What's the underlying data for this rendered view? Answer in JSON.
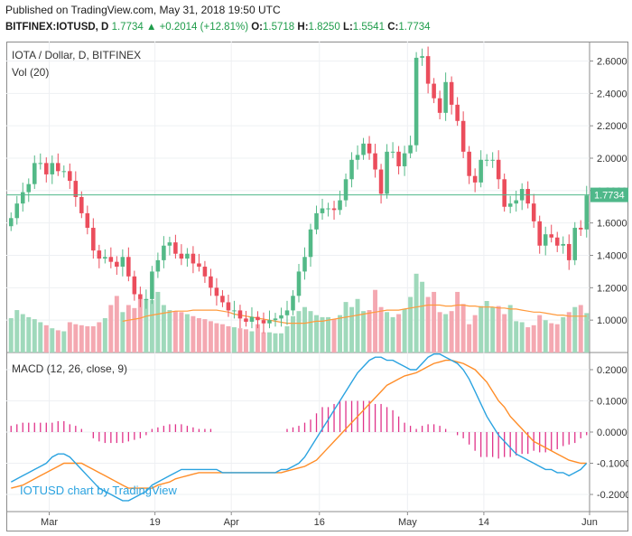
{
  "header": {
    "published": "Published on TradingView.com, May 31, 2018 19:50 UTC",
    "symbol": "BITFINEX:IOTUSD, D",
    "last": "1.7734",
    "change": "+0.2014 (+12.81%)",
    "o_label": "O:",
    "o_value": "1.5718",
    "h_label": "H:",
    "h_value": "1.8250",
    "l_label": "L:",
    "l_value": "1.5541",
    "c_label": "C:",
    "c_value": "1.7734"
  },
  "price_pane": {
    "title": "IOTA / Dollar, D, BITFINEX",
    "vol_label": "Vol (20)",
    "last_price_tag": "1.7734",
    "y_ticks": [
      "2.6000",
      "2.4000",
      "2.2000",
      "2.0000",
      "1.8000",
      "1.6000",
      "1.4000",
      "1.2000",
      "1.0000"
    ]
  },
  "macd_pane": {
    "title": "MACD (12, 26, close, 9)",
    "y_ticks": [
      "0.2000",
      "0.1000",
      "0.0000",
      "-0.1000",
      "-0.2000"
    ],
    "watermark": "IOTUSD chart by TradingView"
  },
  "x_axis": {
    "ticks": [
      "Mar",
      "19",
      "Apr",
      "16",
      "May",
      "14",
      "Jun"
    ]
  },
  "colors": {
    "up": "#53b987",
    "down": "#eb4d5c",
    "up_vol": "#9fd9bb",
    "down_vol": "#f4a8b1",
    "vol_ma": "#ff9a3c",
    "macd": "#2ba3e0",
    "signal": "#ff8d28",
    "hist": "#e0338a",
    "last_line": "#4fb88a",
    "grid": "#eef0f3",
    "axis": "#8a8a8a"
  },
  "chart_data": [
    {
      "type": "candlestick",
      "title": "IOTA / Dollar, D, BITFINEX",
      "x_start": "2018-02-22",
      "x_ticks": [
        "Mar",
        "19",
        "Apr",
        "16",
        "May",
        "14",
        "Jun"
      ],
      "ylim": [
        0.8,
        2.72
      ],
      "series": [
        {
          "name": "close",
          "values": [
            1.63,
            1.72,
            1.79,
            1.84,
            1.97,
            1.97,
            1.9,
            1.97,
            1.92,
            1.92,
            1.86,
            1.76,
            1.66,
            1.57,
            1.43,
            1.38,
            1.39,
            1.36,
            1.33,
            1.39,
            1.27,
            1.16,
            1.13,
            1.13,
            1.3,
            1.37,
            1.46,
            1.48,
            1.41,
            1.38,
            1.41,
            1.35,
            1.33,
            1.27,
            1.2,
            1.15,
            1.11,
            1.06,
            1.06,
            1.01,
            0.99,
            1.02,
            1.0,
            0.98,
            1.0,
            1.01,
            1.03,
            1.06,
            1.15,
            1.3,
            1.39,
            1.56,
            1.66,
            1.69,
            1.69,
            1.68,
            1.74,
            1.87,
            1.99,
            2.02,
            2.09,
            2.03,
            1.93,
            1.78,
            2.04,
            2.04,
            1.95,
            2.03,
            2.08,
            2.62,
            2.63,
            2.46,
            2.37,
            2.28,
            2.47,
            2.33,
            2.23,
            2.04,
            1.89,
            1.85,
            1.99,
            1.99,
            1.99,
            1.87,
            1.7,
            1.72,
            1.74,
            1.81,
            1.72,
            1.61,
            1.46,
            1.53,
            1.51,
            1.46,
            1.47,
            1.37,
            1.57,
            1.56,
            1.77
          ]
        },
        {
          "name": "volume",
          "values": [
            34,
            42,
            38,
            35,
            33,
            30,
            27,
            24,
            22,
            21,
            30,
            28,
            27,
            26,
            26,
            30,
            34,
            47,
            56,
            40,
            47,
            44,
            53,
            53,
            52,
            60,
            47,
            42,
            41,
            40,
            38,
            36,
            34,
            33,
            31,
            29,
            28,
            26,
            25,
            24,
            23,
            21,
            28,
            20,
            20,
            19,
            19,
            26,
            36,
            41,
            45,
            41,
            37,
            35,
            35,
            33,
            37,
            50,
            45,
            53,
            41,
            42,
            62,
            45,
            40,
            35,
            38,
            43,
            55,
            78,
            70,
            55,
            60,
            40,
            38,
            41,
            60,
            48,
            28,
            37,
            46,
            51,
            45,
            46,
            38,
            47,
            31,
            30,
            25,
            27,
            37,
            32,
            29,
            28,
            35,
            40,
            45,
            47,
            39
          ]
        },
        {
          "name": "Vol MA (20)",
          "values": [
            null,
            null,
            null,
            null,
            null,
            null,
            null,
            null,
            null,
            null,
            null,
            null,
            null,
            null,
            null,
            null,
            null,
            null,
            null,
            31,
            32,
            33,
            34,
            36,
            37,
            38,
            39,
            40,
            41,
            41,
            41,
            42,
            42,
            42,
            42,
            42,
            41,
            40,
            38,
            37,
            36,
            35,
            34,
            33,
            32,
            31,
            30,
            29,
            29,
            29,
            29,
            30,
            31,
            31,
            32,
            33,
            34,
            35,
            36,
            37,
            38,
            39,
            40,
            41,
            42,
            42,
            42,
            43,
            44,
            45,
            46,
            47,
            47,
            47,
            46,
            46,
            47,
            47,
            46,
            46,
            45,
            45,
            45,
            44,
            44,
            43,
            43,
            42,
            41,
            40,
            40,
            39,
            38,
            37,
            37,
            36,
            36,
            36,
            36
          ]
        }
      ],
      "last_price": 1.7734
    },
    {
      "type": "line",
      "title": "MACD (12, 26, close, 9)",
      "ylim": [
        -0.255,
        0.255
      ],
      "series": [
        {
          "name": "MACD",
          "values": [
            -0.16,
            -0.15,
            -0.14,
            -0.13,
            -0.12,
            -0.11,
            -0.1,
            -0.08,
            -0.07,
            -0.07,
            -0.08,
            -0.1,
            -0.12,
            -0.14,
            -0.16,
            -0.18,
            -0.19,
            -0.2,
            -0.21,
            -0.22,
            -0.22,
            -0.21,
            -0.2,
            -0.19,
            -0.17,
            -0.16,
            -0.15,
            -0.14,
            -0.13,
            -0.12,
            -0.12,
            -0.12,
            -0.12,
            -0.12,
            -0.12,
            -0.12,
            -0.13,
            -0.13,
            -0.13,
            -0.13,
            -0.13,
            -0.13,
            -0.13,
            -0.13,
            -0.13,
            -0.13,
            -0.12,
            -0.12,
            -0.11,
            -0.1,
            -0.08,
            -0.05,
            -0.02,
            0.01,
            0.04,
            0.07,
            0.1,
            0.13,
            0.16,
            0.19,
            0.21,
            0.23,
            0.24,
            0.24,
            0.23,
            0.23,
            0.22,
            0.21,
            0.2,
            0.2,
            0.22,
            0.24,
            0.25,
            0.25,
            0.24,
            0.23,
            0.22,
            0.2,
            0.17,
            0.13,
            0.09,
            0.05,
            0.02,
            -0.01,
            -0.03,
            -0.05,
            -0.07,
            -0.08,
            -0.09,
            -0.1,
            -0.11,
            -0.12,
            -0.12,
            -0.13,
            -0.13,
            -0.14,
            -0.13,
            -0.12,
            -0.1
          ]
        },
        {
          "name": "Signal",
          "values": [
            -0.18,
            -0.175,
            -0.17,
            -0.16,
            -0.15,
            -0.14,
            -0.13,
            -0.12,
            -0.11,
            -0.1,
            -0.1,
            -0.1,
            -0.1,
            -0.11,
            -0.12,
            -0.13,
            -0.14,
            -0.15,
            -0.16,
            -0.17,
            -0.18,
            -0.18,
            -0.18,
            -0.18,
            -0.18,
            -0.17,
            -0.165,
            -0.16,
            -0.15,
            -0.145,
            -0.14,
            -0.135,
            -0.13,
            -0.13,
            -0.13,
            -0.13,
            -0.13,
            -0.13,
            -0.13,
            -0.13,
            -0.13,
            -0.13,
            -0.13,
            -0.13,
            -0.13,
            -0.13,
            -0.13,
            -0.125,
            -0.12,
            -0.115,
            -0.11,
            -0.1,
            -0.09,
            -0.07,
            -0.05,
            -0.03,
            -0.01,
            0.01,
            0.03,
            0.05,
            0.07,
            0.09,
            0.11,
            0.13,
            0.15,
            0.16,
            0.17,
            0.18,
            0.185,
            0.19,
            0.2,
            0.21,
            0.22,
            0.225,
            0.23,
            0.23,
            0.225,
            0.22,
            0.21,
            0.2,
            0.18,
            0.16,
            0.13,
            0.1,
            0.08,
            0.05,
            0.03,
            0.01,
            -0.01,
            -0.03,
            -0.04,
            -0.05,
            -0.06,
            -0.07,
            -0.08,
            -0.09,
            -0.095,
            -0.1,
            -0.1
          ]
        },
        {
          "name": "Histogram",
          "values": [
            0.02,
            0.025,
            0.03,
            0.03,
            0.03,
            0.03,
            0.03,
            0.03,
            0.035,
            0.035,
            0.025,
            0.02,
            0.01,
            0.0,
            -0.02,
            -0.03,
            -0.035,
            -0.035,
            -0.035,
            -0.035,
            -0.03,
            -0.025,
            -0.02,
            -0.01,
            0.01,
            0.015,
            0.02,
            0.025,
            0.025,
            0.025,
            0.02,
            0.015,
            0.01,
            0.01,
            0.01,
            0.0,
            0.0,
            0.0,
            0.0,
            0.0,
            0.0,
            0.0,
            0.0,
            0.0,
            0.0,
            0.0,
            0.0,
            0.01,
            0.015,
            0.02,
            0.03,
            0.04,
            0.06,
            0.08,
            0.08,
            0.09,
            0.1,
            0.1,
            0.1,
            0.1,
            0.1,
            0.1,
            0.09,
            0.09,
            0.08,
            0.07,
            0.05,
            0.03,
            0.02,
            0.01,
            0.02,
            0.025,
            0.025,
            0.02,
            0.01,
            0.0,
            -0.01,
            -0.02,
            -0.04,
            -0.06,
            -0.08,
            -0.08,
            -0.08,
            -0.085,
            -0.08,
            -0.08,
            -0.075,
            -0.07,
            -0.07,
            -0.06,
            -0.065,
            -0.065,
            -0.06,
            -0.055,
            -0.045,
            -0.04,
            -0.035,
            -0.02,
            -0.01
          ]
        }
      ]
    }
  ]
}
